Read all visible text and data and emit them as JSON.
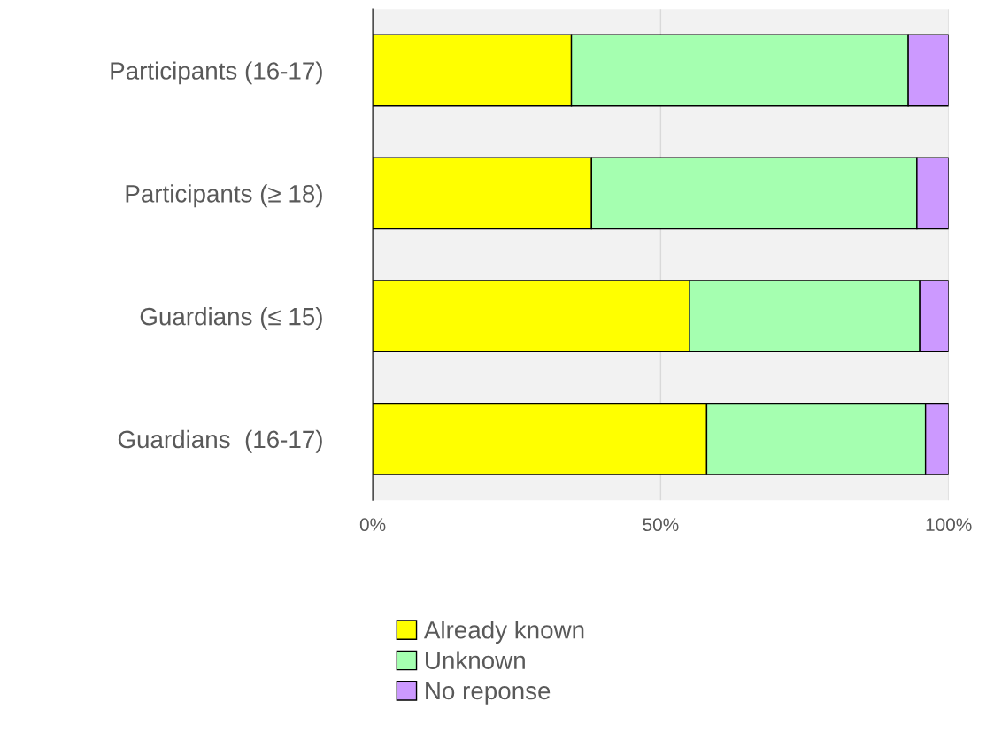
{
  "chart_data": {
    "type": "bar",
    "orientation": "horizontal",
    "stacked": true,
    "categories": [
      "Participants (16-17)",
      "Participants (≥ 18)",
      "Guardians (≤ 15)",
      "Guardians  (16-17)"
    ],
    "series": [
      {
        "name": "Already known",
        "color": "#ffff00",
        "values": [
          34.5,
          38,
          55,
          58
        ]
      },
      {
        "name": "Unknown",
        "color": "#a5ffb0",
        "values": [
          58.5,
          56.5,
          40,
          38
        ]
      },
      {
        "name": "No reponse",
        "color": "#cc99ff",
        "values": [
          7,
          5.5,
          5,
          4
        ]
      }
    ],
    "xlim": [
      0,
      100
    ],
    "xticks": [
      {
        "value": 0,
        "label": "0%"
      },
      {
        "value": 50,
        "label": "50%"
      },
      {
        "value": 100,
        "label": "100%"
      }
    ],
    "grid": "x",
    "legend": "bottom"
  }
}
